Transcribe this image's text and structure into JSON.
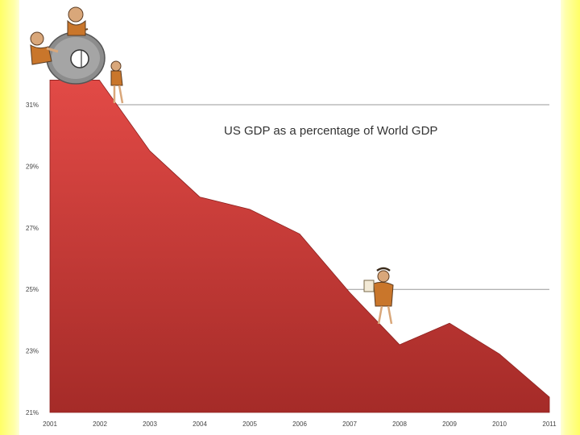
{
  "chart_data": {
    "type": "area",
    "title": "US GDP as a percentage of World GDP",
    "x": [
      2001,
      2001.99,
      2003,
      2004,
      2005,
      2006,
      2007,
      2008,
      2009,
      2010,
      2011
    ],
    "x_ticks": [
      "2001",
      "2002",
      "2003",
      "2004",
      "2005",
      "2006",
      "2007",
      "2008",
      "2009",
      "2010",
      "2011"
    ],
    "values": [
      31.8,
      31.8,
      29.5,
      28.0,
      27.6,
      26.8,
      24.9,
      23.2,
      23.9,
      22.9,
      21.5
    ],
    "y_ticks": [
      "21%",
      "23%",
      "25%",
      "27%",
      "29%",
      "31%"
    ],
    "ylim": [
      21,
      31
    ],
    "grid": "horizontal",
    "colors": {
      "fill_top": "#e24a46",
      "fill_bottom": "#a52b28",
      "gridline": "#999999"
    },
    "illustrations": [
      "caveman-rolling-stone-wheel-icon",
      "caveman-climbing-icon"
    ]
  }
}
